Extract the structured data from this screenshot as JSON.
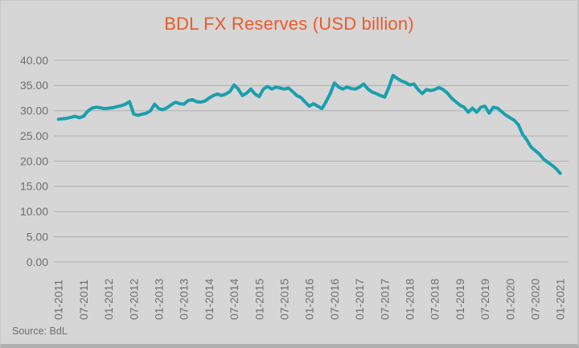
{
  "chart": {
    "title": "BDL FX Reserves (USD billion)",
    "source": "Source: BdL"
  },
  "colors": {
    "background": "#d6d6d6",
    "line": "#199fad",
    "title_text": "#eb5b29",
    "axis_text": "#6e6e6e",
    "gridline": "#aeaeae",
    "border_bottom": "#afafaf"
  },
  "chart_data": {
    "type": "line",
    "title": "BDL FX Reserves (USD billion)",
    "series_name": "BDL FX Reserves",
    "unit": "USD billion",
    "frequency": "monthly",
    "x_start": "01-2011",
    "x_end": "01-2021",
    "x_tick_labels": [
      "01-2011",
      "07-2011",
      "01-2012",
      "07-2012",
      "01-2013",
      "07-2013",
      "01-2014",
      "07-2014",
      "01-2015",
      "07-2015",
      "01-2016",
      "07-2016",
      "01-2017",
      "07-2017",
      "01-2018",
      "07-2018",
      "01-2019",
      "07-2019",
      "01-2020",
      "07-2020",
      "01-2021"
    ],
    "y_tick_labels": [
      "40.00",
      "35.00",
      "30.00",
      "25.00",
      "20.00",
      "15.00",
      "10.00",
      "5.00",
      "0.00"
    ],
    "ylim": [
      0,
      40
    ],
    "grid": true,
    "legend": "none",
    "values": [
      28.3,
      28.4,
      28.5,
      28.7,
      28.9,
      28.6,
      28.9,
      29.9,
      30.5,
      30.7,
      30.6,
      30.4,
      30.5,
      30.6,
      30.8,
      31.0,
      31.3,
      31.8,
      29.3,
      29.1,
      29.3,
      29.5,
      30.0,
      31.3,
      30.4,
      30.2,
      30.6,
      31.2,
      31.7,
      31.4,
      31.3,
      32.0,
      32.2,
      31.8,
      31.7,
      31.9,
      32.5,
      33.0,
      33.3,
      33.0,
      33.3,
      33.8,
      35.1,
      34.3,
      33.0,
      33.5,
      34.3,
      33.3,
      32.8,
      34.3,
      34.8,
      34.3,
      34.7,
      34.5,
      34.3,
      34.5,
      33.8,
      33.0,
      32.6,
      31.7,
      30.9,
      31.4,
      30.9,
      30.4,
      31.8,
      33.4,
      35.5,
      34.7,
      34.3,
      34.7,
      34.4,
      34.3,
      34.7,
      35.3,
      34.3,
      33.7,
      33.4,
      33.0,
      32.7,
      34.6,
      37.0,
      36.4,
      35.9,
      35.6,
      35.1,
      35.3,
      34.2,
      33.4,
      34.2,
      34.0,
      34.2,
      34.6,
      34.2,
      33.5,
      32.5,
      31.8,
      31.1,
      30.7,
      29.7,
      30.5,
      29.7,
      30.7,
      30.9,
      29.5,
      30.7,
      30.5,
      29.8,
      29.1,
      28.6,
      28.1,
      27.2,
      25.3,
      24.2,
      22.8,
      22.1,
      21.4,
      20.4,
      19.8,
      19.2,
      18.5,
      17.6
    ]
  }
}
